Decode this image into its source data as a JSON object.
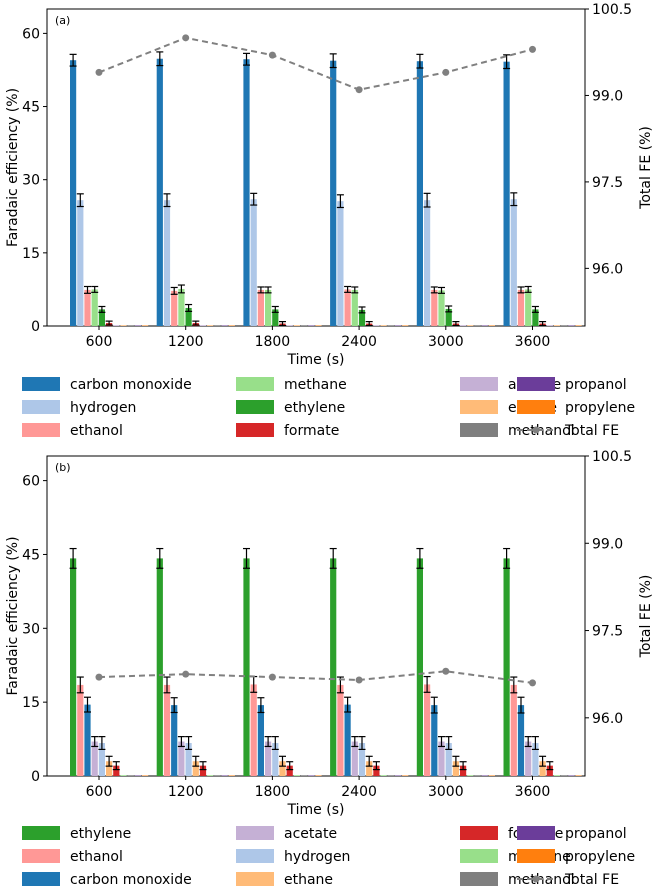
{
  "chart_data": [
    {
      "type": "bar",
      "panel_label": "(a)",
      "xlabel": "Time (s)",
      "ylabel": "Faradaic efficiency (%)",
      "ylabel_right": "Total FE (%)",
      "categories": [
        "600",
        "1200",
        "1800",
        "2400",
        "3000",
        "3600"
      ],
      "ylim": [
        0,
        65
      ],
      "yticks": [
        "0",
        "15",
        "30",
        "45",
        "60"
      ],
      "ylim_right": [
        95.0,
        100.5
      ],
      "yticks_right": [
        "96.0",
        "97.5",
        "99.0",
        "100.5"
      ],
      "grid": false,
      "legend_placement": "below",
      "series": [
        {
          "name": "carbon monoxide",
          "color": "#1f77b4",
          "values": [
            54.5,
            54.8,
            54.7,
            54.4,
            54.3,
            54.2
          ],
          "errors": [
            1.2,
            1.4,
            1.2,
            1.4,
            1.4,
            1.4
          ]
        },
        {
          "name": "hydrogen",
          "color": "#aec7e8",
          "values": [
            25.8,
            25.8,
            26.0,
            25.6,
            25.8,
            26.0
          ],
          "errors": [
            1.3,
            1.3,
            1.2,
            1.3,
            1.4,
            1.3
          ]
        },
        {
          "name": "ethanol",
          "color": "#ff9896",
          "values": [
            7.4,
            7.2,
            7.4,
            7.5,
            7.4,
            7.4
          ],
          "errors": [
            0.7,
            0.7,
            0.6,
            0.6,
            0.6,
            0.6
          ]
        },
        {
          "name": "methane",
          "color": "#98df8a",
          "values": [
            7.5,
            7.6,
            7.4,
            7.4,
            7.3,
            7.5
          ],
          "errors": [
            0.6,
            0.8,
            0.6,
            0.6,
            0.6,
            0.6
          ]
        },
        {
          "name": "ethylene",
          "color": "#2ca02c",
          "values": [
            3.4,
            3.7,
            3.4,
            3.3,
            3.5,
            3.4
          ],
          "errors": [
            0.6,
            0.7,
            0.6,
            0.6,
            0.6,
            0.6
          ]
        },
        {
          "name": "formate",
          "color": "#d62728",
          "values": [
            0.6,
            0.6,
            0.5,
            0.5,
            0.5,
            0.5
          ],
          "errors": [
            0.4,
            0.4,
            0.4,
            0.4,
            0.4,
            0.4
          ]
        },
        {
          "name": "acetate",
          "color": "#c5b0d5",
          "values": [
            0.15,
            0.15,
            0.15,
            0.15,
            0.15,
            0.15
          ],
          "errors": [
            0,
            0,
            0,
            0,
            0,
            0
          ]
        },
        {
          "name": "ethane",
          "color": "#ffbb78",
          "values": [
            0.15,
            0.15,
            0.15,
            0.15,
            0.15,
            0.15
          ],
          "errors": [
            0,
            0,
            0,
            0,
            0,
            0
          ]
        },
        {
          "name": "methanol",
          "color": "#7f7f7f",
          "values": [
            0.15,
            0.15,
            0.15,
            0.15,
            0.15,
            0.15
          ],
          "errors": [
            0,
            0,
            0,
            0,
            0,
            0
          ]
        },
        {
          "name": "propanol",
          "color": "#6b3d9a",
          "values": [
            0.1,
            0.1,
            0.1,
            0.1,
            0.1,
            0.1
          ],
          "errors": [
            0,
            0,
            0,
            0,
            0,
            0
          ]
        },
        {
          "name": "propylene",
          "color": "#ff7f0e",
          "values": [
            0.1,
            0.1,
            0.1,
            0.1,
            0.1,
            0.1
          ],
          "errors": [
            0,
            0,
            0,
            0,
            0,
            0
          ]
        }
      ],
      "total_fe": {
        "name": "Total FE",
        "color": "#808080",
        "values": [
          99.4,
          100.0,
          99.7,
          99.1,
          99.4,
          99.8
        ]
      },
      "legend_order": [
        "carbon monoxide",
        "methane",
        "acetate",
        "propanol",
        "hydrogen",
        "ethylene",
        "ethane",
        "propylene",
        "ethanol",
        "formate",
        "methanol",
        "Total FE"
      ]
    },
    {
      "type": "bar",
      "panel_label": "(b)",
      "xlabel": "Time (s)",
      "ylabel": "Faradaic efficiency (%)",
      "ylabel_right": "Total FE (%)",
      "categories": [
        "600",
        "1200",
        "1800",
        "2400",
        "3000",
        "3600"
      ],
      "ylim": [
        0,
        65
      ],
      "yticks": [
        "0",
        "15",
        "30",
        "45",
        "60"
      ],
      "ylim_right": [
        95.0,
        100.5
      ],
      "yticks_right": [
        "96.0",
        "97.5",
        "99.0",
        "100.5"
      ],
      "grid": false,
      "legend_placement": "below",
      "series": [
        {
          "name": "ethylene",
          "color": "#2ca02c",
          "values": [
            44.2,
            44.2,
            44.2,
            44.2,
            44.2,
            44.2
          ],
          "errors": [
            2.0,
            2.0,
            2.0,
            2.0,
            2.0,
            2.0
          ]
        },
        {
          "name": "ethanol",
          "color": "#ff9896",
          "values": [
            18.5,
            18.5,
            18.6,
            18.5,
            18.6,
            18.5
          ],
          "errors": [
            1.6,
            1.6,
            1.6,
            1.6,
            1.6,
            1.6
          ]
        },
        {
          "name": "carbon monoxide",
          "color": "#1f77b4",
          "values": [
            14.5,
            14.4,
            14.4,
            14.5,
            14.4,
            14.4
          ],
          "errors": [
            1.5,
            1.5,
            1.5,
            1.5,
            1.6,
            1.6
          ]
        },
        {
          "name": "acetate",
          "color": "#c5b0d5",
          "values": [
            7.0,
            7.0,
            7.0,
            7.0,
            7.0,
            7.0
          ],
          "errors": [
            1.0,
            1.0,
            1.0,
            1.0,
            1.0,
            1.0
          ]
        },
        {
          "name": "hydrogen",
          "color": "#aec7e8",
          "values": [
            6.7,
            6.7,
            6.7,
            6.7,
            6.7,
            6.7
          ],
          "errors": [
            1.3,
            1.3,
            1.3,
            1.3,
            1.3,
            1.3
          ]
        },
        {
          "name": "ethane",
          "color": "#ffbb78",
          "values": [
            3.0,
            3.0,
            3.0,
            3.0,
            3.0,
            3.0
          ],
          "errors": [
            1.0,
            1.0,
            1.0,
            1.0,
            1.0,
            1.0
          ]
        },
        {
          "name": "formate",
          "color": "#d62728",
          "values": [
            2.1,
            2.1,
            2.1,
            2.1,
            2.1,
            2.1
          ],
          "errors": [
            0.8,
            0.8,
            0.8,
            0.8,
            0.8,
            0.8
          ]
        },
        {
          "name": "methane",
          "color": "#98df8a",
          "values": [
            0.15,
            0.15,
            0.15,
            0.15,
            0.15,
            0.15
          ],
          "errors": [
            0,
            0,
            0,
            0,
            0,
            0
          ]
        },
        {
          "name": "methanol",
          "color": "#7f7f7f",
          "values": [
            0.15,
            0.15,
            0.15,
            0.15,
            0.15,
            0.15
          ],
          "errors": [
            0,
            0,
            0,
            0,
            0,
            0
          ]
        },
        {
          "name": "propanol",
          "color": "#6b3d9a",
          "values": [
            0.1,
            0.1,
            0.1,
            0.1,
            0.1,
            0.1
          ],
          "errors": [
            0,
            0,
            0,
            0,
            0,
            0
          ]
        },
        {
          "name": "propylene",
          "color": "#ff7f0e",
          "values": [
            0.1,
            0.1,
            0.1,
            0.1,
            0.1,
            0.1
          ],
          "errors": [
            0,
            0,
            0,
            0,
            0,
            0
          ]
        }
      ],
      "total_fe": {
        "name": "Total FE",
        "color": "#808080",
        "values": [
          96.7,
          96.75,
          96.7,
          96.65,
          96.8,
          96.6
        ]
      },
      "legend_order": [
        "ethylene",
        "acetate",
        "formate",
        "propanol",
        "ethanol",
        "hydrogen",
        "methane",
        "propylene",
        "carbon monoxide",
        "ethane",
        "methanol",
        "Total FE"
      ]
    }
  ]
}
